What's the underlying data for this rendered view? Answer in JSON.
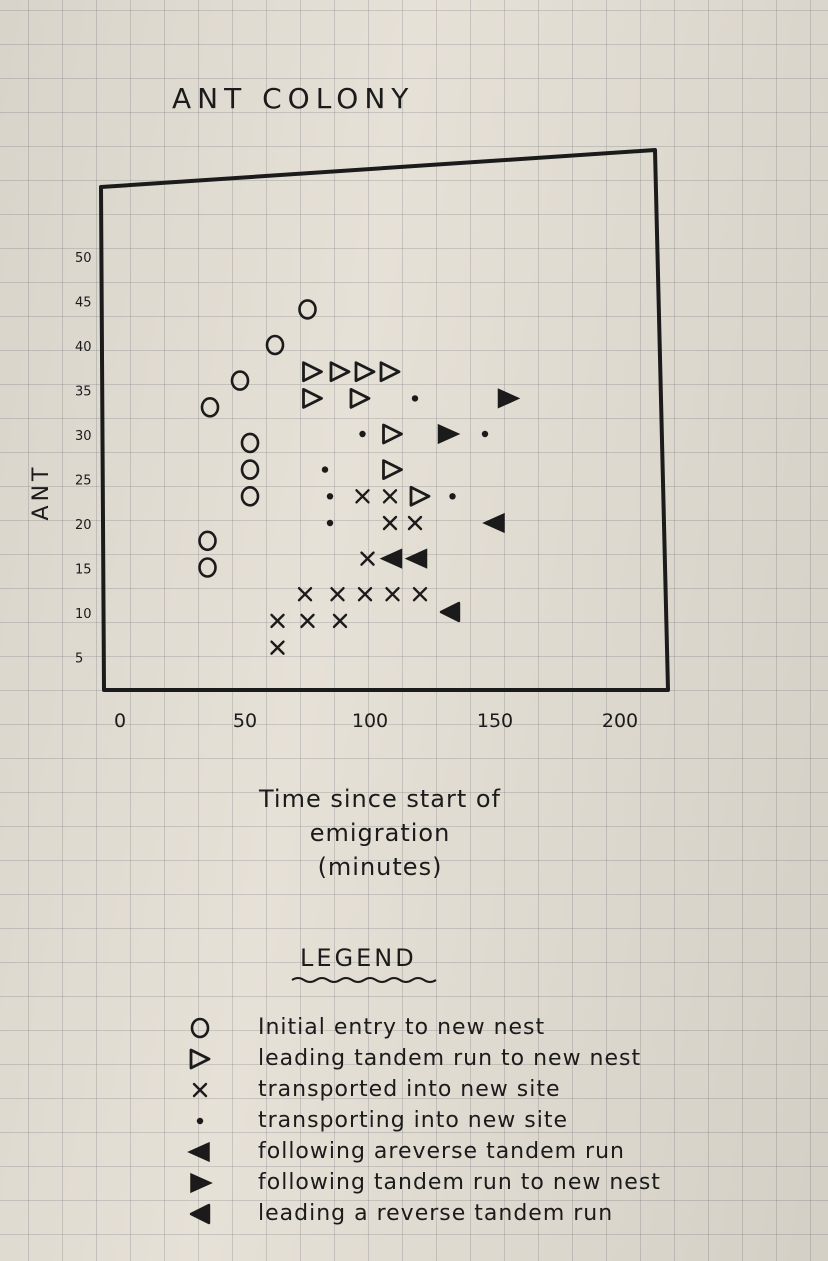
{
  "chart_data": {
    "type": "scatter",
    "title": "ANT COLONY",
    "xlabel_lines": [
      "Time since start of",
      "emigration",
      "(minutes)"
    ],
    "ylabel": "ANT",
    "xlim": [
      0,
      200
    ],
    "ylim": [
      0,
      50
    ],
    "xticks": [
      0,
      50,
      100,
      150,
      200
    ],
    "xtick_labels": [
      "0",
      "50",
      "100",
      "150",
      "200"
    ],
    "yticks": [
      5,
      10,
      15,
      20,
      25,
      30,
      35,
      40,
      45,
      50
    ],
    "ytick_labels": [
      "5",
      "10",
      "15",
      "20",
      "25",
      "30",
      "35",
      "40",
      "45",
      "50"
    ],
    "grid": false,
    "series": [
      {
        "name": "Initial entry to new nest",
        "marker": "circle",
        "points": [
          [
            75,
            44
          ],
          [
            62,
            40
          ],
          [
            48,
            36
          ],
          [
            36,
            33
          ],
          [
            52,
            29
          ],
          [
            52,
            26
          ],
          [
            52,
            23
          ],
          [
            35,
            18
          ],
          [
            35,
            15
          ]
        ]
      },
      {
        "name": "leading tandem run to new nest",
        "marker": "triangle-right-open",
        "points": [
          [
            77,
            37
          ],
          [
            88,
            37
          ],
          [
            98,
            37
          ],
          [
            108,
            37
          ],
          [
            77,
            34
          ],
          [
            96,
            34
          ],
          [
            109,
            30
          ],
          [
            109,
            26
          ],
          [
            120,
            23
          ]
        ]
      },
      {
        "name": "transported into new site",
        "marker": "x",
        "points": [
          [
            97,
            23
          ],
          [
            108,
            23
          ],
          [
            108,
            20
          ],
          [
            118,
            20
          ],
          [
            99,
            16
          ],
          [
            74,
            12
          ],
          [
            87,
            12
          ],
          [
            98,
            12
          ],
          [
            109,
            12
          ],
          [
            120,
            12
          ],
          [
            63,
            9
          ],
          [
            75,
            9
          ],
          [
            88,
            9
          ],
          [
            63,
            6
          ]
        ]
      },
      {
        "name": "transporting into new site",
        "marker": "dot",
        "points": [
          [
            118,
            34
          ],
          [
            97,
            30
          ],
          [
            146,
            30
          ],
          [
            82,
            26
          ],
          [
            84,
            23
          ],
          [
            133,
            23
          ],
          [
            84,
            20
          ]
        ]
      },
      {
        "name": "following a reverse tandem run",
        "marker": "triangle-left-filled",
        "points": [
          [
            109,
            16
          ],
          [
            119,
            16
          ],
          [
            150,
            20
          ]
        ]
      },
      {
        "name": "following tandem run to new nest",
        "marker": "triangle-right-filled",
        "points": [
          [
            155,
            34
          ],
          [
            131,
            30
          ]
        ]
      },
      {
        "name": "leading a reverse tandem run",
        "marker": "triangle-left-open",
        "points": [
          [
            132,
            10
          ]
        ]
      }
    ]
  },
  "legend": {
    "title": "LEGEND",
    "items": [
      {
        "marker": "circle",
        "label": "Initial entry to new nest"
      },
      {
        "marker": "triangle-right-open",
        "label": "leading tandem run to new nest"
      },
      {
        "marker": "x",
        "label": "transported into new site"
      },
      {
        "marker": "dot",
        "label": "transporting into new site"
      },
      {
        "marker": "triangle-left-filled",
        "label": "following areverse tandem run"
      },
      {
        "marker": "triangle-right-filled",
        "label": "following tandem run to new nest"
      },
      {
        "marker": "triangle-left-open",
        "label": "leading a reverse tandem run"
      }
    ]
  },
  "colors": {
    "ink": "#1b1b1b",
    "paper": "#e6e1d6",
    "grid": "#8a8a94"
  }
}
